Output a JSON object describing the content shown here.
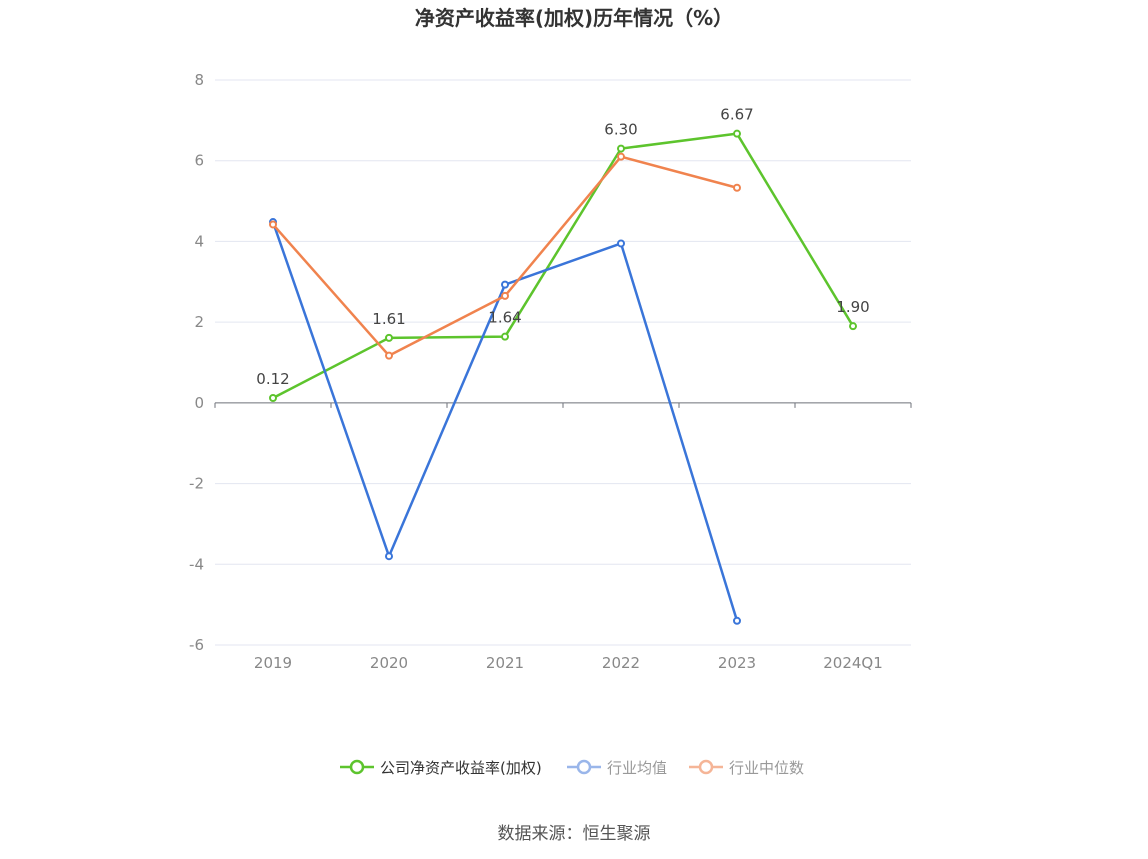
{
  "chart_data": {
    "type": "line",
    "title": "净资产收益率(加权)历年情况（%）",
    "categories": [
      "2019",
      "2020",
      "2021",
      "2022",
      "2023",
      "2024Q1"
    ],
    "ylim": [
      -6,
      8
    ],
    "yticks": [
      -6,
      -4,
      -2,
      0,
      2,
      4,
      6,
      8
    ],
    "ytick_labels": [
      "-6",
      "-4",
      "-2",
      "0",
      "2",
      "4",
      "6",
      "8"
    ],
    "grid": true,
    "legend_position": "bottom",
    "series": [
      {
        "name": "公司净资产收益率(加权)",
        "color": "#5dc42d",
        "values": [
          0.12,
          1.61,
          1.64,
          6.3,
          6.67,
          1.9
        ],
        "labels": [
          "0.12",
          "1.61",
          "1.64",
          "6.30",
          "6.67",
          "1.90"
        ]
      },
      {
        "name": "行业均值",
        "color": "#3a75d9",
        "values": [
          4.48,
          -3.8,
          2.93,
          3.95,
          -5.4,
          null
        ]
      },
      {
        "name": "行业中位数",
        "color": "#f0834e",
        "values": [
          4.42,
          1.17,
          2.65,
          6.1,
          5.33,
          null
        ]
      }
    ]
  },
  "source": "数据来源：恒生聚源"
}
